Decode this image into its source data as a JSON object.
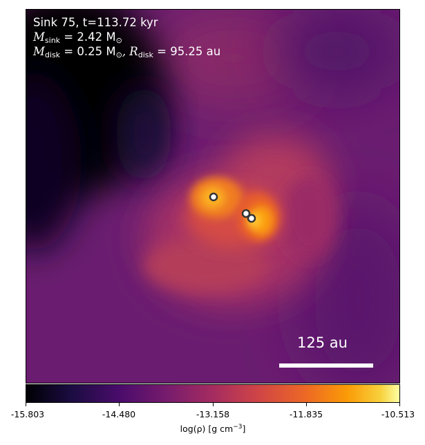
{
  "annotation": {
    "line1": "Sink 75, t=113.72 kyr",
    "m_sink_label": "M",
    "m_sink_sub": "sink",
    "m_sink_value": " = 2.42 M",
    "m_sink_unit_sub": "⊙",
    "m_disk_label": "M",
    "m_disk_sub": "disk",
    "m_disk_value": " = 0.25 M",
    "m_disk_unit_sub": "⊙",
    "r_disk_label": ", R",
    "r_disk_sub": "disk",
    "r_disk_value": " = 95.25 au"
  },
  "scalebar": {
    "label": "125 au"
  },
  "colorbar": {
    "ticks": [
      "-15.803",
      "-14.480",
      "-13.158",
      "-11.835",
      "-10.513"
    ],
    "label_prefix": "log(ρ) [g cm",
    "label_sup": "−3",
    "label_suffix": "]"
  },
  "colors": {
    "background": "#6a1e6e",
    "cavity": "#000004",
    "core": "#ffd23c"
  }
}
